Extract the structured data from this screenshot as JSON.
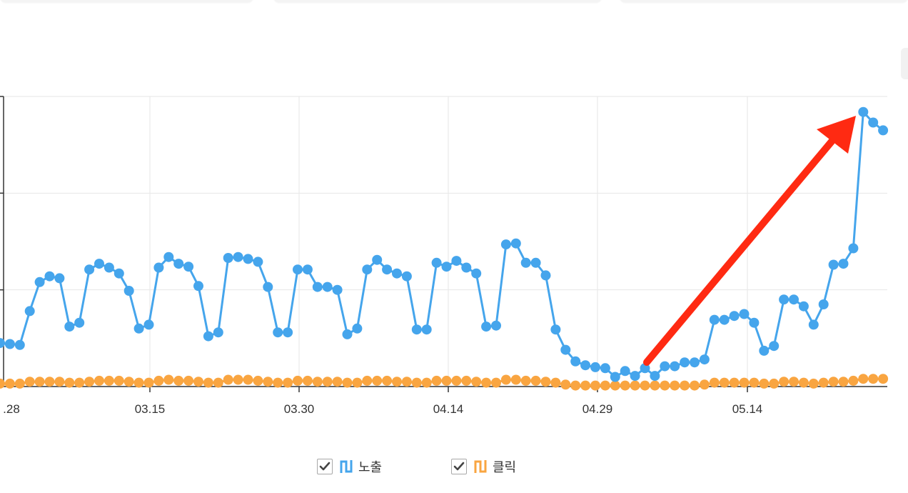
{
  "chart_data": {
    "type": "line",
    "x_tick_labels": [
      ".28",
      "03.15",
      "03.30",
      "04.14",
      "04.29",
      "05.14"
    ],
    "y_ticks": 4,
    "ylim": [
      0,
      3
    ],
    "grid": true,
    "legend_position": "bottom",
    "series": [
      {
        "name": "노출",
        "color": "#45a5ec",
        "values": [
          0.45,
          0.44,
          0.43,
          0.78,
          1.08,
          1.14,
          1.12,
          0.62,
          0.66,
          1.21,
          1.27,
          1.23,
          1.17,
          0.99,
          0.6,
          0.64,
          1.23,
          1.34,
          1.27,
          1.24,
          1.04,
          0.52,
          0.56,
          1.33,
          1.34,
          1.32,
          1.29,
          1.03,
          0.56,
          0.56,
          1.21,
          1.21,
          1.03,
          1.03,
          1.0,
          0.54,
          0.6,
          1.21,
          1.31,
          1.21,
          1.17,
          1.14,
          0.59,
          0.59,
          1.28,
          1.24,
          1.3,
          1.23,
          1.17,
          0.62,
          0.63,
          1.47,
          1.48,
          1.28,
          1.28,
          1.15,
          0.59,
          0.38,
          0.26,
          0.22,
          0.2,
          0.19,
          0.1,
          0.16,
          0.11,
          0.19,
          0.11,
          0.21,
          0.21,
          0.25,
          0.25,
          0.28,
          0.69,
          0.69,
          0.73,
          0.75,
          0.66,
          0.37,
          0.42,
          0.9,
          0.9,
          0.83,
          0.64,
          0.85,
          1.26,
          1.27,
          1.43,
          2.84,
          2.73,
          2.65
        ]
      },
      {
        "name": "클릭",
        "color": "#f9a541",
        "values": [
          0.03,
          0.03,
          0.03,
          0.05,
          0.05,
          0.05,
          0.05,
          0.04,
          0.04,
          0.05,
          0.06,
          0.06,
          0.06,
          0.05,
          0.04,
          0.04,
          0.06,
          0.07,
          0.06,
          0.06,
          0.05,
          0.04,
          0.04,
          0.07,
          0.07,
          0.07,
          0.06,
          0.05,
          0.04,
          0.04,
          0.06,
          0.06,
          0.05,
          0.05,
          0.05,
          0.04,
          0.04,
          0.06,
          0.06,
          0.06,
          0.05,
          0.05,
          0.04,
          0.04,
          0.06,
          0.06,
          0.06,
          0.06,
          0.05,
          0.04,
          0.04,
          0.07,
          0.07,
          0.06,
          0.06,
          0.05,
          0.04,
          0.02,
          0.01,
          0.01,
          0.01,
          0.01,
          0.01,
          0.01,
          0.01,
          0.01,
          0.01,
          0.01,
          0.01,
          0.01,
          0.01,
          0.02,
          0.04,
          0.04,
          0.04,
          0.04,
          0.04,
          0.03,
          0.03,
          0.05,
          0.05,
          0.04,
          0.03,
          0.04,
          0.05,
          0.05,
          0.06,
          0.08,
          0.08,
          0.08
        ]
      }
    ]
  },
  "legend": {
    "items": [
      {
        "label": "노출",
        "checked": true,
        "color": "#45a5ec"
      },
      {
        "label": "클릭",
        "checked": true,
        "color": "#f9a541"
      }
    ]
  },
  "annotation": {
    "type": "arrow",
    "color": "#ff2a12"
  }
}
